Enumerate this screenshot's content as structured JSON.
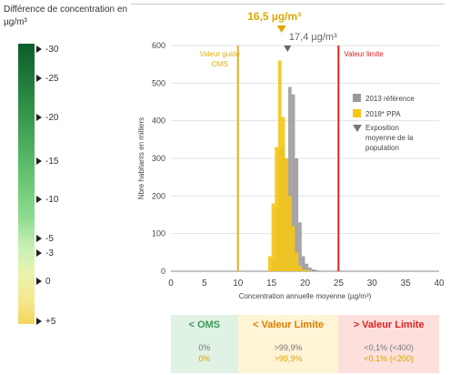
{
  "legend": {
    "title": "Différence de concentration en µg/m³",
    "ticks": [
      "-30",
      "-25",
      "-20",
      "-15",
      "-10",
      "-5",
      "-3",
      "0",
      "+5"
    ]
  },
  "chart_data": {
    "type": "bar",
    "title": "",
    "xlabel": "Concentration annuelle moyenne (µg/m³)",
    "ylabel": "Nbre habitants en milliers",
    "xlim": [
      0,
      40
    ],
    "ylim": [
      0,
      600
    ],
    "x_ticks": [
      "0",
      "5",
      "10",
      "15",
      "20",
      "25",
      "30",
      "35",
      "40"
    ],
    "y_ticks": [
      "0",
      "100",
      "200",
      "300",
      "400",
      "500",
      "600"
    ],
    "series": [
      {
        "name": "2013 référence",
        "color": "#9a9a9a",
        "x": [
          15,
          15.5,
          16,
          16.5,
          17,
          17.5,
          18,
          18.5,
          19,
          19.5,
          20,
          20.5,
          21,
          21.5
        ],
        "values": [
          30,
          170,
          320,
          330,
          300,
          490,
          470,
          300,
          130,
          40,
          20,
          10,
          5,
          3
        ]
      },
      {
        "name": "2018* PPA",
        "color": "#f5c518",
        "x": [
          14.5,
          15,
          15.5,
          16,
          16.5,
          17,
          17.5,
          18,
          18.5,
          19,
          19.5,
          20,
          20.5
        ],
        "values": [
          40,
          180,
          330,
          560,
          410,
          300,
          200,
          120,
          50,
          15,
          5,
          3,
          2
        ]
      }
    ],
    "legend_extra": "Exposition moyenne de la population",
    "annotations": [
      {
        "label": "16,5 µg/m³",
        "x": 16.5,
        "color": "#e0a800"
      },
      {
        "label": "17,4 µg/m³",
        "x": 17.4,
        "color": "#666666"
      }
    ],
    "reference_lines": [
      {
        "label": "Valeur guide OMS",
        "x": 10,
        "color": "#e0b020"
      },
      {
        "label": "Valeur limite",
        "x": 25,
        "color": "#dd2222"
      }
    ]
  },
  "zones": [
    {
      "label": "< OMS",
      "label_color": "#3a9a5a",
      "bg": "#dff2e4",
      "v1": "0%",
      "v2": "0%",
      "v2_color": "#d9a300"
    },
    {
      "label": "< Valeur Limite",
      "label_color": "#e07a00",
      "bg": "#fff4d6",
      "v1": ">99,9%",
      "v2": ">99,9%",
      "v2_color": "#d9a300"
    },
    {
      "label": "> Valeur Limite",
      "label_color": "#dd2222",
      "bg": "#fde0dc",
      "v1": "<0,1% (<400)",
      "v2": "<0,1% (<200)",
      "v2_color": "#d9a300"
    }
  ]
}
